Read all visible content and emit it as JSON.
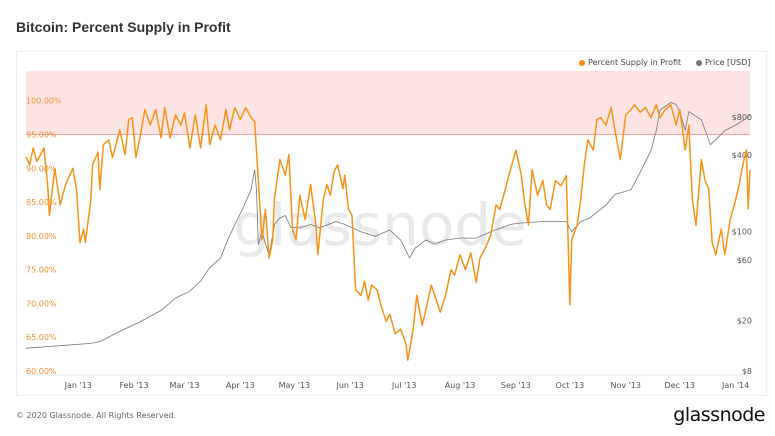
{
  "title": "Bitcoin: Percent Supply in Profit",
  "footer": "© 2020 Glassnode. All Rights Reserved.",
  "logo": "glassnode",
  "watermark": "glassnode",
  "chart_data": {
    "type": "line",
    "title": "Bitcoin: Percent Supply in Profit",
    "legend_position": "top-right",
    "grid": false,
    "x_range": [
      "2012-12-03",
      "2014-01-09"
    ],
    "x_ticks": [
      {
        "date": "2013-01-01",
        "label": "Jan '13"
      },
      {
        "date": "2013-02-01",
        "label": "Feb '13"
      },
      {
        "date": "2013-03-01",
        "label": "Mar '13"
      },
      {
        "date": "2013-04-01",
        "label": "Apr '13"
      },
      {
        "date": "2013-05-01",
        "label": "May '13"
      },
      {
        "date": "2013-06-01",
        "label": "Jun '13"
      },
      {
        "date": "2013-07-01",
        "label": "Jul '13"
      },
      {
        "date": "2013-08-01",
        "label": "Aug '13"
      },
      {
        "date": "2013-09-01",
        "label": "Sep '13"
      },
      {
        "date": "2013-10-01",
        "label": "Oct '13"
      },
      {
        "date": "2013-11-01",
        "label": "Nov '13"
      },
      {
        "date": "2013-12-01",
        "label": "Dec '13"
      },
      {
        "date": "2014-01-01",
        "label": "Jan '14"
      }
    ],
    "y_left": {
      "scale": "linear",
      "ylim": [
        60,
        104.4
      ],
      "ticks": [
        {
          "value": 100,
          "label": "100.00%"
        },
        {
          "value": 95,
          "label": "95.00%"
        },
        {
          "value": 90,
          "label": "90.00%"
        },
        {
          "value": 85,
          "label": "85.00%"
        },
        {
          "value": 80,
          "label": "80.00%"
        },
        {
          "value": 75,
          "label": "75.00%"
        },
        {
          "value": 70,
          "label": "70.00%"
        },
        {
          "value": 65,
          "label": "65.00%"
        },
        {
          "value": 60,
          "label": "60.00%"
        }
      ]
    },
    "y_right": {
      "scale": "log",
      "ylim": [
        8,
        1840
      ],
      "ticks": [
        {
          "value": 800,
          "label": "$800"
        },
        {
          "value": 400,
          "label": "$400"
        },
        {
          "value": 100,
          "label": "$100"
        },
        {
          "value": 60,
          "label": "$60"
        },
        {
          "value": 20,
          "label": "$20"
        },
        {
          "value": 8,
          "label": "$8"
        }
      ]
    },
    "highlight_band": {
      "from": 95,
      "to": 104.4,
      "fill": "#fde4e4",
      "edge": "#f3a3a3"
    },
    "series": [
      {
        "name": "Percent Supply in Profit",
        "color": "#f7931a",
        "axis": "left",
        "points": [
          [
            "2012-12-03",
            91.7
          ],
          [
            "2012-12-05",
            90.5
          ],
          [
            "2012-12-07",
            93
          ],
          [
            "2012-12-09",
            91
          ],
          [
            "2012-12-13",
            93
          ],
          [
            "2012-12-15",
            87.6
          ],
          [
            "2012-12-16",
            83
          ],
          [
            "2012-12-19",
            90
          ],
          [
            "2012-12-22",
            84.6
          ],
          [
            "2012-12-25",
            87.6
          ],
          [
            "2012-12-29",
            90
          ],
          [
            "2012-12-31",
            87
          ],
          [
            "2013-01-02",
            79
          ],
          [
            "2013-01-04",
            81
          ],
          [
            "2013-01-05",
            79
          ],
          [
            "2013-01-08",
            85.3
          ],
          [
            "2013-01-09",
            90.5
          ],
          [
            "2013-01-12",
            92.4
          ],
          [
            "2013-01-13",
            86.8
          ],
          [
            "2013-01-15",
            93.5
          ],
          [
            "2013-01-18",
            94.2
          ],
          [
            "2013-01-20",
            91.6
          ],
          [
            "2013-01-22",
            93.5
          ],
          [
            "2013-01-24",
            95.7
          ],
          [
            "2013-01-27",
            92
          ],
          [
            "2013-01-29",
            97.2
          ],
          [
            "2013-01-31",
            97.5
          ],
          [
            "2013-02-02",
            91.6
          ],
          [
            "2013-02-04",
            94.2
          ],
          [
            "2013-02-07",
            98.7
          ],
          [
            "2013-02-10",
            96.4
          ],
          [
            "2013-02-13",
            98.7
          ],
          [
            "2013-02-16",
            94.5
          ],
          [
            "2013-02-18",
            99
          ],
          [
            "2013-02-21",
            94.5
          ],
          [
            "2013-02-24",
            97.9
          ],
          [
            "2013-02-27",
            96.4
          ],
          [
            "2013-03-01",
            98.2
          ],
          [
            "2013-03-04",
            93
          ],
          [
            "2013-03-07",
            97.9
          ],
          [
            "2013-03-10",
            93
          ],
          [
            "2013-03-13",
            99.4
          ],
          [
            "2013-03-15",
            93.5
          ],
          [
            "2013-03-18",
            96.4
          ],
          [
            "2013-03-21",
            94.2
          ],
          [
            "2013-03-24",
            98.7
          ],
          [
            "2013-03-26",
            95.7
          ],
          [
            "2013-03-29",
            99
          ],
          [
            "2013-04-01",
            97.2
          ],
          [
            "2013-04-04",
            99
          ],
          [
            "2013-04-07",
            97.5
          ],
          [
            "2013-04-09",
            96.9
          ],
          [
            "2013-04-11",
            88.3
          ],
          [
            "2013-04-13",
            79.4
          ],
          [
            "2013-04-15",
            83.9
          ],
          [
            "2013-04-17",
            76.7
          ],
          [
            "2013-04-19",
            79.4
          ],
          [
            "2013-04-20",
            85.6
          ],
          [
            "2013-04-23",
            91.3
          ],
          [
            "2013-04-26",
            89
          ],
          [
            "2013-04-28",
            92
          ],
          [
            "2013-04-30",
            80.9
          ],
          [
            "2013-05-02",
            79.4
          ],
          [
            "2013-05-04",
            86
          ],
          [
            "2013-05-07",
            82.4
          ],
          [
            "2013-05-10",
            87.6
          ],
          [
            "2013-05-13",
            81.6
          ],
          [
            "2013-05-14",
            77.2
          ],
          [
            "2013-05-17",
            85.3
          ],
          [
            "2013-05-19",
            87.6
          ],
          [
            "2013-05-21",
            86
          ],
          [
            "2013-05-23",
            89.5
          ],
          [
            "2013-05-25",
            90.5
          ],
          [
            "2013-05-28",
            87
          ],
          [
            "2013-05-29",
            89
          ],
          [
            "2013-05-31",
            84
          ],
          [
            "2013-06-02",
            83
          ],
          [
            "2013-06-04",
            72
          ],
          [
            "2013-06-07",
            71.2
          ],
          [
            "2013-06-09",
            73.3
          ],
          [
            "2013-06-11",
            70.5
          ],
          [
            "2013-06-13",
            72.7
          ],
          [
            "2013-06-16",
            72
          ],
          [
            "2013-06-18",
            69.8
          ],
          [
            "2013-06-21",
            67.3
          ],
          [
            "2013-06-23",
            68.4
          ],
          [
            "2013-06-26",
            65.5
          ],
          [
            "2013-06-29",
            66.2
          ],
          [
            "2013-07-02",
            64
          ],
          [
            "2013-07-03",
            61.6
          ],
          [
            "2013-07-06",
            66.2
          ],
          [
            "2013-07-08",
            71.2
          ],
          [
            "2013-07-11",
            66.8
          ],
          [
            "2013-07-13",
            69
          ],
          [
            "2013-07-16",
            72.7
          ],
          [
            "2013-07-18",
            71.2
          ],
          [
            "2013-07-21",
            68.7
          ],
          [
            "2013-07-24",
            71.2
          ],
          [
            "2013-07-27",
            75
          ],
          [
            "2013-07-29",
            74.2
          ],
          [
            "2013-08-01",
            77.2
          ],
          [
            "2013-08-04",
            75
          ],
          [
            "2013-08-07",
            77.5
          ],
          [
            "2013-08-10",
            73.1
          ],
          [
            "2013-08-12",
            76.7
          ],
          [
            "2013-08-15",
            78.2
          ],
          [
            "2013-08-18",
            80.1
          ],
          [
            "2013-08-21",
            84.6
          ],
          [
            "2013-08-23",
            83.9
          ],
          [
            "2013-08-26",
            86.8
          ],
          [
            "2013-08-29",
            89.8
          ],
          [
            "2013-09-01",
            92.7
          ],
          [
            "2013-09-04",
            89
          ],
          [
            "2013-09-06",
            84.6
          ],
          [
            "2013-09-08",
            81.6
          ],
          [
            "2013-09-10",
            89.8
          ],
          [
            "2013-09-13",
            86
          ],
          [
            "2013-09-16",
            88.2
          ],
          [
            "2013-09-18",
            84.6
          ],
          [
            "2013-09-20",
            83.9
          ],
          [
            "2013-09-23",
            88.2
          ],
          [
            "2013-09-26",
            87.4
          ],
          [
            "2013-09-29",
            88.9
          ],
          [
            "2013-10-01",
            69.8
          ],
          [
            "2013-10-02",
            79.4
          ],
          [
            "2013-10-05",
            81.6
          ],
          [
            "2013-10-07",
            85.3
          ],
          [
            "2013-10-09",
            90.5
          ],
          [
            "2013-10-11",
            94.2
          ],
          [
            "2013-10-14",
            92.7
          ],
          [
            "2013-10-16",
            97.2
          ],
          [
            "2013-10-18",
            97.5
          ],
          [
            "2013-10-21",
            96.4
          ],
          [
            "2013-10-24",
            99
          ],
          [
            "2013-10-26",
            95.7
          ],
          [
            "2013-10-29",
            91.3
          ],
          [
            "2013-11-01",
            97.9
          ],
          [
            "2013-11-04",
            98.7
          ],
          [
            "2013-11-06",
            99.4
          ],
          [
            "2013-11-09",
            98.3
          ],
          [
            "2013-11-12",
            99
          ],
          [
            "2013-11-15",
            97.5
          ],
          [
            "2013-11-18",
            99.4
          ],
          [
            "2013-11-20",
            97.5
          ],
          [
            "2013-11-23",
            98.7
          ],
          [
            "2013-11-26",
            99.4
          ],
          [
            "2013-11-29",
            96.4
          ],
          [
            "2013-12-01",
            98.7
          ],
          [
            "2013-12-04",
            92.7
          ],
          [
            "2013-12-06",
            96.4
          ],
          [
            "2013-12-08",
            85.3
          ],
          [
            "2013-12-10",
            81.6
          ],
          [
            "2013-12-13",
            91.3
          ],
          [
            "2013-12-15",
            88.2
          ],
          [
            "2013-12-17",
            87
          ],
          [
            "2013-12-19",
            79
          ],
          [
            "2013-12-21",
            77.2
          ],
          [
            "2013-12-24",
            81
          ],
          [
            "2013-12-26",
            77.2
          ],
          [
            "2013-12-29",
            82.4
          ],
          [
            "2014-01-01",
            85.3
          ],
          [
            "2014-01-03",
            87.6
          ],
          [
            "2014-01-05",
            90.5
          ],
          [
            "2014-01-07",
            92.7
          ],
          [
            "2014-01-08",
            84
          ],
          [
            "2014-01-09",
            89.8
          ]
        ]
      },
      {
        "name": "Price [USD]",
        "color": "#777777",
        "axis": "right",
        "points": [
          [
            "2012-12-03",
            12.1
          ],
          [
            "2013-01-08",
            13.2
          ],
          [
            "2013-01-13",
            13.6
          ],
          [
            "2013-01-24",
            16.4
          ],
          [
            "2013-02-04",
            19.4
          ],
          [
            "2013-02-16",
            24
          ],
          [
            "2013-02-24",
            30
          ],
          [
            "2013-03-04",
            34
          ],
          [
            "2013-03-10",
            41
          ],
          [
            "2013-03-15",
            52
          ],
          [
            "2013-03-21",
            62
          ],
          [
            "2013-03-25",
            86
          ],
          [
            "2013-03-29",
            114
          ],
          [
            "2013-04-02",
            148
          ],
          [
            "2013-04-07",
            214
          ],
          [
            "2013-04-09",
            308
          ],
          [
            "2013-04-10",
            211
          ],
          [
            "2013-04-11",
            79
          ],
          [
            "2013-04-13",
            100
          ],
          [
            "2013-04-17",
            65
          ],
          [
            "2013-04-20",
            114
          ],
          [
            "2013-04-23",
            128
          ],
          [
            "2013-04-26",
            134
          ],
          [
            "2013-04-29",
            108
          ],
          [
            "2013-05-04",
            107
          ],
          [
            "2013-05-10",
            114
          ],
          [
            "2013-05-15",
            107
          ],
          [
            "2013-05-24",
            120
          ],
          [
            "2013-05-29",
            114
          ],
          [
            "2013-06-07",
            100
          ],
          [
            "2013-06-15",
            92
          ],
          [
            "2013-06-23",
            103
          ],
          [
            "2013-06-29",
            86
          ],
          [
            "2013-07-04",
            62
          ],
          [
            "2013-07-07",
            74
          ],
          [
            "2013-07-13",
            86
          ],
          [
            "2013-07-18",
            80
          ],
          [
            "2013-07-24",
            86
          ],
          [
            "2013-08-01",
            89
          ],
          [
            "2013-08-10",
            89
          ],
          [
            "2013-08-18",
            100
          ],
          [
            "2013-08-29",
            114
          ],
          [
            "2013-09-04",
            117
          ],
          [
            "2013-09-15",
            120
          ],
          [
            "2013-09-29",
            120
          ],
          [
            "2013-10-02",
            100
          ],
          [
            "2013-10-07",
            120
          ],
          [
            "2013-10-12",
            128
          ],
          [
            "2013-10-21",
            162
          ],
          [
            "2013-10-26",
            196
          ],
          [
            "2013-11-04",
            214
          ],
          [
            "2013-11-09",
            292
          ],
          [
            "2013-11-15",
            433
          ],
          [
            "2013-11-18",
            625
          ],
          [
            "2013-11-20",
            907
          ],
          [
            "2013-11-26",
            1040
          ],
          [
            "2013-11-29",
            1000
          ],
          [
            "2013-12-01",
            880
          ],
          [
            "2013-12-04",
            625
          ],
          [
            "2013-12-06",
            880
          ],
          [
            "2013-12-13",
            760
          ],
          [
            "2013-12-18",
            484
          ],
          [
            "2013-12-21",
            530
          ],
          [
            "2013-12-26",
            625
          ],
          [
            "2014-01-01",
            690
          ],
          [
            "2014-01-07",
            780
          ],
          [
            "2014-01-09",
            830
          ]
        ]
      }
    ]
  }
}
